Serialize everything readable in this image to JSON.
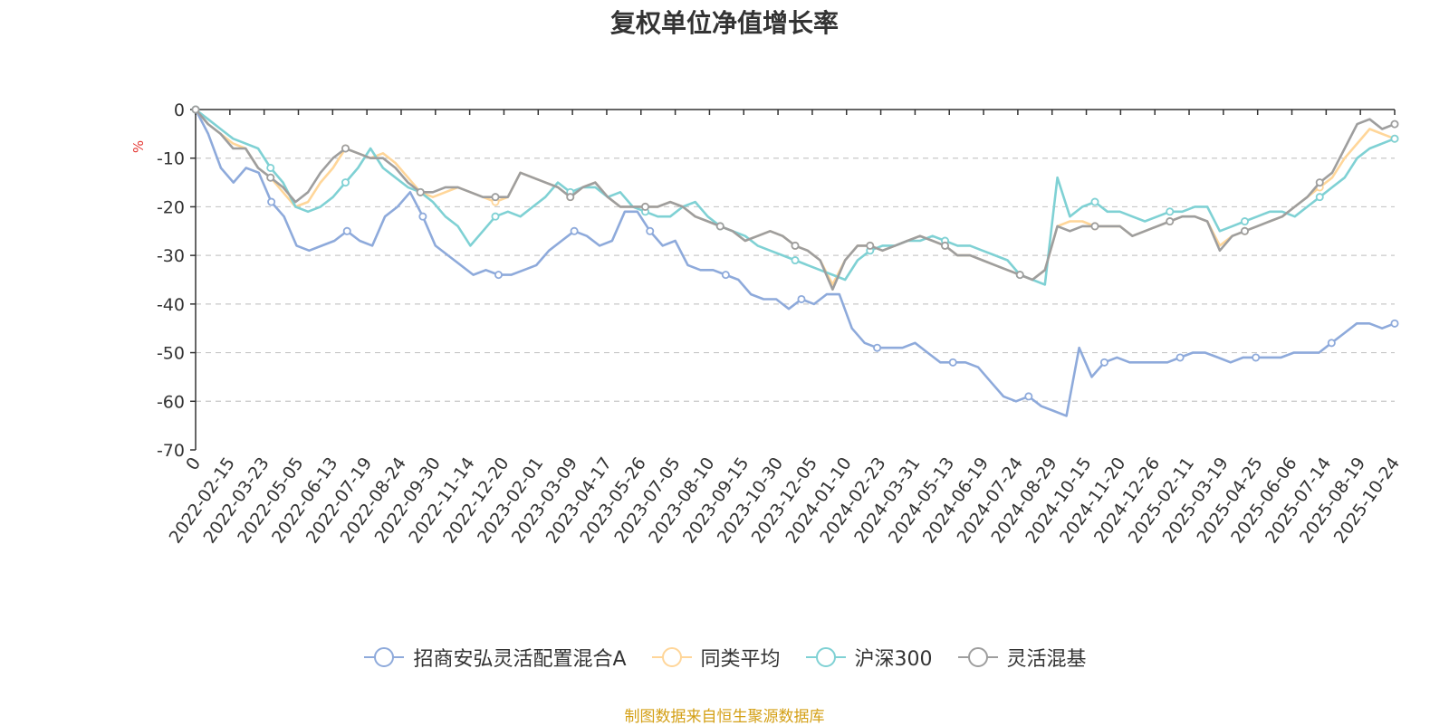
{
  "chart_data": {
    "type": "line",
    "title": "复权单位净值增长率",
    "yunit": "%",
    "ylim": [
      -70,
      0
    ],
    "yticks": [
      0,
      -10,
      -20,
      -30,
      -40,
      -50,
      -60,
      -70
    ],
    "x_tick_labels": [
      "0",
      "2022-02-15",
      "2022-03-23",
      "2022-05-05",
      "2022-06-13",
      "2022-07-19",
      "2022-08-24",
      "2022-09-30",
      "2022-11-14",
      "2022-12-20",
      "2023-02-01",
      "2023-03-09",
      "2023-04-17",
      "2023-05-26",
      "2023-07-05",
      "2023-08-10",
      "2023-09-15",
      "2023-10-30",
      "2023-12-05",
      "2024-01-10",
      "2024-02-23",
      "2024-03-31",
      "2024-05-13",
      "2024-06-19",
      "2024-07-24",
      "2024-08-29",
      "2024-10-15",
      "2024-11-20",
      "2024-12-26",
      "2025-02-11",
      "2025-03-19",
      "2025-04-25",
      "2025-06-06",
      "2025-07-14",
      "2025-08-19",
      "2025-10-24"
    ],
    "grid": "horizontal-dashed",
    "legend_position": "bottom",
    "series": [
      {
        "name": "招商安弘灵活配置混合A",
        "color": "#8eaadb",
        "values": [
          0,
          -5,
          -12,
          -15,
          -12,
          -13,
          -19,
          -22,
          -28,
          -29,
          -28,
          -27,
          -25,
          -27,
          -28,
          -22,
          -20,
          -17,
          -22,
          -28,
          -30,
          -32,
          -34,
          -33,
          -34,
          -34,
          -33,
          -32,
          -29,
          -27,
          -25,
          -26,
          -28,
          -27,
          -21,
          -21,
          -25,
          -28,
          -27,
          -32,
          -33,
          -33,
          -34,
          -35,
          -38,
          -39,
          -39,
          -41,
          -39,
          -40,
          -38,
          -38,
          -45,
          -48,
          -49,
          -49,
          -49,
          -48,
          -50,
          -52,
          -52,
          -52,
          -53,
          -56,
          -59,
          -60,
          -59,
          -61,
          -62,
          -63,
          -49,
          -55,
          -52,
          -51,
          -52,
          -52,
          -52,
          -52,
          -51,
          -50,
          -50,
          -51,
          -52,
          -51,
          -51,
          -51,
          -51,
          -50,
          -50,
          -50,
          -48,
          -46,
          -44,
          -44,
          -45,
          -44
        ]
      },
      {
        "name": "同类平均",
        "color": "#ffd699",
        "values": [
          0,
          -3,
          -5,
          -7,
          -8,
          -12,
          -14,
          -17,
          -20,
          -19,
          -15,
          -12,
          -8,
          -9,
          -10,
          -9,
          -11,
          -14,
          -17,
          -18,
          -17,
          -16,
          -17,
          -18,
          -19,
          -18,
          -13,
          -14,
          -15,
          -16,
          -18,
          -16,
          -15,
          -18,
          -20,
          -20,
          -20,
          -20,
          -19,
          -20,
          -22,
          -23,
          -24,
          -25,
          -27,
          -26,
          -25,
          -26,
          -28,
          -29,
          -31,
          -36,
          -31,
          -28,
          -28,
          -29,
          -28,
          -27,
          -26,
          -27,
          -28,
          -30,
          -30,
          -31,
          -32,
          -33,
          -34,
          -35,
          -33,
          -24,
          -23,
          -23,
          -24,
          -24,
          -24,
          -26,
          -25,
          -24,
          -23,
          -22,
          -22,
          -23,
          -28,
          -26,
          -25,
          -24,
          -23,
          -22,
          -20,
          -18,
          -16,
          -14,
          -10,
          -7,
          -4,
          -5,
          -6
        ]
      },
      {
        "name": "沪深300",
        "color": "#7fd1d4",
        "values": [
          0,
          -2,
          -4,
          -6,
          -7,
          -8,
          -12,
          -15,
          -20,
          -21,
          -20,
          -18,
          -15,
          -12,
          -8,
          -12,
          -14,
          -16,
          -17,
          -19,
          -22,
          -24,
          -28,
          -25,
          -22,
          -21,
          -22,
          -20,
          -18,
          -15,
          -17,
          -16,
          -16,
          -18,
          -17,
          -20,
          -21,
          -22,
          -22,
          -20,
          -19,
          -22,
          -24,
          -25,
          -26,
          -28,
          -29,
          -30,
          -31,
          -32,
          -33,
          -34,
          -35,
          -31,
          -29,
          -28,
          -28,
          -27,
          -27,
          -26,
          -27,
          -28,
          -28,
          -29,
          -30,
          -31,
          -34,
          -35,
          -36,
          -14,
          -22,
          -20,
          -19,
          -21,
          -21,
          -22,
          -23,
          -22,
          -21,
          -21,
          -20,
          -20,
          -25,
          -24,
          -23,
          -22,
          -21,
          -21,
          -22,
          -20,
          -18,
          -16,
          -14,
          -10,
          -8,
          -7,
          -6
        ]
      },
      {
        "name": "灵活混基",
        "color": "#9e9e9e",
        "values": [
          0,
          -3,
          -5,
          -8,
          -8,
          -12,
          -14,
          -16,
          -19,
          -17,
          -13,
          -10,
          -8,
          -9,
          -10,
          -10,
          -12,
          -15,
          -17,
          -17,
          -16,
          -16,
          -17,
          -18,
          -18,
          -18,
          -13,
          -14,
          -15,
          -16,
          -18,
          -16,
          -15,
          -18,
          -20,
          -20,
          -20,
          -20,
          -19,
          -20,
          -22,
          -23,
          -24,
          -25,
          -27,
          -26,
          -25,
          -26,
          -28,
          -29,
          -31,
          -37,
          -31,
          -28,
          -28,
          -29,
          -28,
          -27,
          -26,
          -27,
          -28,
          -30,
          -30,
          -31,
          -32,
          -33,
          -34,
          -35,
          -33,
          -24,
          -25,
          -24,
          -24,
          -24,
          -24,
          -26,
          -25,
          -24,
          -23,
          -22,
          -22,
          -23,
          -29,
          -26,
          -25,
          -24,
          -23,
          -22,
          -20,
          -18,
          -15,
          -13,
          -8,
          -3,
          -2,
          -4,
          -3
        ]
      }
    ]
  },
  "source_note": "制图数据来自恒生聚源数据库"
}
